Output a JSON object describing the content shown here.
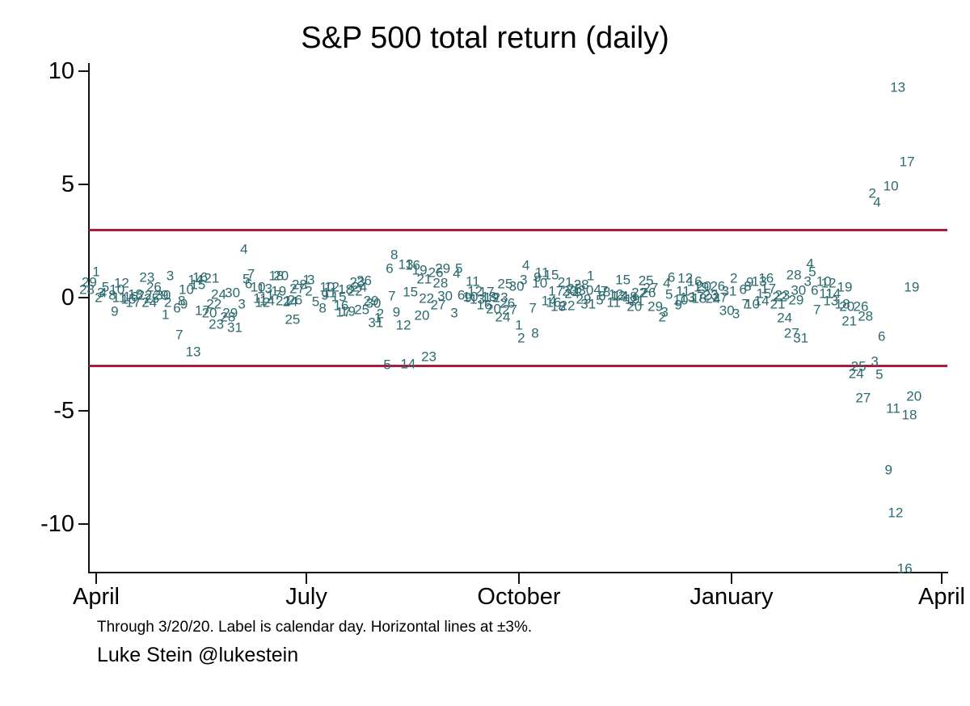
{
  "header": {
    "title": "S&P 500 total return (daily)"
  },
  "notes": {
    "footnote": "Through 3/20/20. Label is calendar day. Horizontal lines at ±3%.",
    "credit": "Luke Stein @lukestein"
  },
  "colors": {
    "point_label": "#2b6a6f",
    "ref_line": "#a81e3a",
    "axis": "#111111",
    "background": "#ffffff"
  },
  "chart_data": {
    "type": "scatter",
    "title": "S&P 500 total return (daily)",
    "marker": "calendar-day-number-label",
    "xlabel": "",
    "ylabel": "",
    "grid": false,
    "legend": "none",
    "x_axis": {
      "start_date": "2019-03-27",
      "end_date": "2020-04-01",
      "ticks": [
        {
          "label": "April",
          "date": "2019-04-01"
        },
        {
          "label": "July",
          "date": "2019-07-01"
        },
        {
          "label": "October",
          "date": "2019-10-01"
        },
        {
          "label": "January",
          "date": "2020-01-01"
        },
        {
          "label": "April",
          "date": "2020-04-01"
        }
      ]
    },
    "y_axis": {
      "ticks": [
        10,
        5,
        0,
        -5,
        -10
      ],
      "ylim": [
        -12.2,
        10.5
      ],
      "units": "percent"
    },
    "ref_lines": [
      3,
      -3
    ],
    "points": [
      [
        "2019-03-28",
        28,
        0.36
      ],
      [
        "2019-03-29",
        29,
        0.67
      ],
      [
        "2019-04-01",
        1,
        1.16
      ],
      [
        "2019-04-02",
        2,
        0.0
      ],
      [
        "2019-04-03",
        3,
        0.21
      ],
      [
        "2019-04-04",
        4,
        0.21
      ],
      [
        "2019-04-05",
        5,
        0.46
      ],
      [
        "2019-04-08",
        8,
        0.1
      ],
      [
        "2019-04-09",
        9,
        -0.61
      ],
      [
        "2019-04-10",
        10,
        0.35
      ],
      [
        "2019-04-11",
        11,
        0.0
      ],
      [
        "2019-04-12",
        12,
        0.66
      ],
      [
        "2019-04-15",
        15,
        -0.06
      ],
      [
        "2019-04-16",
        16,
        0.05
      ],
      [
        "2019-04-17",
        17,
        -0.23
      ],
      [
        "2019-04-18",
        18,
        0.16
      ],
      [
        "2019-04-22",
        22,
        0.1
      ],
      [
        "2019-04-23",
        23,
        0.88
      ],
      [
        "2019-04-24",
        24,
        -0.22
      ],
      [
        "2019-04-25",
        25,
        -0.04
      ],
      [
        "2019-04-26",
        26,
        0.47
      ],
      [
        "2019-04-29",
        29,
        0.11
      ],
      [
        "2019-04-30",
        30,
        0.1
      ],
      [
        "2019-05-01",
        1,
        -0.75
      ],
      [
        "2019-05-02",
        2,
        -0.21
      ],
      [
        "2019-05-03",
        3,
        0.96
      ],
      [
        "2019-05-06",
        6,
        -0.45
      ],
      [
        "2019-05-07",
        7,
        -1.65
      ],
      [
        "2019-05-08",
        8,
        -0.16
      ],
      [
        "2019-05-09",
        9,
        -0.3
      ],
      [
        "2019-05-10",
        10,
        0.37
      ],
      [
        "2019-05-13",
        13,
        -2.41
      ],
      [
        "2019-05-14",
        14,
        0.8
      ],
      [
        "2019-05-15",
        15,
        0.58
      ],
      [
        "2019-05-16",
        16,
        0.89
      ],
      [
        "2019-05-17",
        17,
        -0.58
      ],
      [
        "2019-05-20",
        20,
        -0.67
      ],
      [
        "2019-05-21",
        21,
        0.85
      ],
      [
        "2019-05-22",
        22,
        -0.28
      ],
      [
        "2019-05-23",
        23,
        -1.19
      ],
      [
        "2019-05-24",
        24,
        0.14
      ],
      [
        "2019-05-28",
        28,
        -0.84
      ],
      [
        "2019-05-29",
        29,
        -0.69
      ],
      [
        "2019-05-30",
        30,
        0.21
      ],
      [
        "2019-05-31",
        31,
        -1.32
      ],
      [
        "2019-06-03",
        3,
        -0.28
      ],
      [
        "2019-06-04",
        4,
        2.14
      ],
      [
        "2019-06-05",
        5,
        0.82
      ],
      [
        "2019-06-06",
        6,
        0.61
      ],
      [
        "2019-06-07",
        7,
        1.05
      ],
      [
        "2019-06-10",
        10,
        0.47
      ],
      [
        "2019-06-11",
        11,
        -0.03
      ],
      [
        "2019-06-12",
        12,
        -0.2
      ],
      [
        "2019-06-13",
        13,
        0.41
      ],
      [
        "2019-06-14",
        14,
        -0.16
      ],
      [
        "2019-06-17",
        17,
        0.09
      ],
      [
        "2019-06-18",
        18,
        0.97
      ],
      [
        "2019-06-19",
        19,
        0.3
      ],
      [
        "2019-06-20",
        20,
        0.95
      ],
      [
        "2019-06-21",
        21,
        -0.13
      ],
      [
        "2019-06-24",
        24,
        -0.17
      ],
      [
        "2019-06-25",
        25,
        -0.95
      ],
      [
        "2019-06-26",
        26,
        -0.12
      ],
      [
        "2019-06-27",
        27,
        0.38
      ],
      [
        "2019-06-28",
        28,
        0.58
      ],
      [
        "2019-07-01",
        1,
        0.77
      ],
      [
        "2019-07-02",
        2,
        0.29
      ],
      [
        "2019-07-03",
        3,
        0.77
      ],
      [
        "2019-07-05",
        5,
        -0.18
      ],
      [
        "2019-07-08",
        8,
        -0.48
      ],
      [
        "2019-07-09",
        9,
        0.12
      ],
      [
        "2019-07-10",
        10,
        0.45
      ],
      [
        "2019-07-11",
        11,
        0.23
      ],
      [
        "2019-07-12",
        12,
        0.46
      ],
      [
        "2019-07-15",
        15,
        0.02
      ],
      [
        "2019-07-16",
        16,
        -0.34
      ],
      [
        "2019-07-17",
        17,
        -0.65
      ],
      [
        "2019-07-18",
        18,
        0.36
      ],
      [
        "2019-07-19",
        19,
        -0.62
      ],
      [
        "2019-07-22",
        22,
        0.28
      ],
      [
        "2019-07-23",
        23,
        0.68
      ],
      [
        "2019-07-24",
        24,
        0.47
      ],
      [
        "2019-07-25",
        25,
        -0.53
      ],
      [
        "2019-07-26",
        26,
        0.74
      ],
      [
        "2019-07-29",
        29,
        -0.16
      ],
      [
        "2019-07-30",
        30,
        -0.26
      ],
      [
        "2019-07-31",
        31,
        -1.09
      ],
      [
        "2019-08-01",
        1,
        -0.9
      ],
      [
        "2019-08-02",
        2,
        -0.73
      ],
      [
        "2019-08-05",
        5,
        -2.98
      ],
      [
        "2019-08-06",
        6,
        1.3
      ],
      [
        "2019-08-07",
        7,
        0.08
      ],
      [
        "2019-08-08",
        8,
        1.88
      ],
      [
        "2019-08-09",
        9,
        -0.66
      ],
      [
        "2019-08-12",
        12,
        -1.22
      ],
      [
        "2019-08-13",
        13,
        1.48
      ],
      [
        "2019-08-14",
        14,
        -2.93
      ],
      [
        "2019-08-15",
        15,
        0.25
      ],
      [
        "2019-08-16",
        16,
        1.44
      ],
      [
        "2019-08-19",
        19,
        1.21
      ],
      [
        "2019-08-20",
        20,
        -0.79
      ],
      [
        "2019-08-21",
        21,
        0.82
      ],
      [
        "2019-08-22",
        22,
        -0.05
      ],
      [
        "2019-08-23",
        23,
        -2.59
      ],
      [
        "2019-08-26",
        26,
        1.1
      ],
      [
        "2019-08-27",
        27,
        -0.32
      ],
      [
        "2019-08-28",
        28,
        0.65
      ],
      [
        "2019-08-29",
        29,
        1.27
      ],
      [
        "2019-08-30",
        30,
        0.06
      ],
      [
        "2019-09-03",
        3,
        -0.69
      ],
      [
        "2019-09-04",
        4,
        1.08
      ],
      [
        "2019-09-05",
        5,
        1.3
      ],
      [
        "2019-09-06",
        6,
        0.09
      ],
      [
        "2019-09-09",
        9,
        0.0
      ],
      [
        "2019-09-10",
        10,
        0.03
      ],
      [
        "2019-09-11",
        11,
        0.72
      ],
      [
        "2019-09-12",
        12,
        0.29
      ],
      [
        "2019-09-13",
        13,
        -0.07
      ],
      [
        "2019-09-16",
        16,
        -0.31
      ],
      [
        "2019-09-17",
        17,
        0.26
      ],
      [
        "2019-09-18",
        18,
        0.03
      ],
      [
        "2019-09-19",
        19,
        0.0
      ],
      [
        "2019-09-20",
        20,
        -0.49
      ],
      [
        "2019-09-23",
        23,
        -0.01
      ],
      [
        "2019-09-24",
        24,
        -0.84
      ],
      [
        "2019-09-25",
        25,
        0.62
      ],
      [
        "2019-09-26",
        26,
        -0.24
      ],
      [
        "2019-09-27",
        27,
        -0.53
      ],
      [
        "2019-09-30",
        30,
        0.5
      ],
      [
        "2019-10-01",
        1,
        -1.23
      ],
      [
        "2019-10-02",
        2,
        -1.79
      ],
      [
        "2019-10-03",
        3,
        0.8
      ],
      [
        "2019-10-04",
        4,
        1.42
      ],
      [
        "2019-10-07",
        7,
        -0.45
      ],
      [
        "2019-10-08",
        8,
        -1.56
      ],
      [
        "2019-10-09",
        9,
        0.91
      ],
      [
        "2019-10-10",
        10,
        0.64
      ],
      [
        "2019-10-11",
        11,
        1.09
      ],
      [
        "2019-10-14",
        14,
        -0.14
      ],
      [
        "2019-10-15",
        15,
        1.0
      ],
      [
        "2019-10-16",
        16,
        -0.2
      ],
      [
        "2019-10-17",
        17,
        0.28
      ],
      [
        "2019-10-18",
        18,
        -0.39
      ],
      [
        "2019-10-21",
        21,
        0.69
      ],
      [
        "2019-10-22",
        22,
        -0.36
      ],
      [
        "2019-10-23",
        23,
        0.28
      ],
      [
        "2019-10-24",
        24,
        0.19
      ],
      [
        "2019-10-25",
        25,
        0.41
      ],
      [
        "2019-10-28",
        28,
        0.56
      ],
      [
        "2019-10-29",
        29,
        -0.08
      ],
      [
        "2019-10-30",
        30,
        0.33
      ],
      [
        "2019-10-31",
        31,
        -0.3
      ],
      [
        "2019-11-01",
        1,
        0.97
      ],
      [
        "2019-11-04",
        4,
        0.37
      ],
      [
        "2019-11-05",
        5,
        -0.12
      ],
      [
        "2019-11-06",
        6,
        0.07
      ],
      [
        "2019-11-07",
        7,
        0.27
      ],
      [
        "2019-11-08",
        8,
        0.26
      ],
      [
        "2019-11-11",
        11,
        -0.2
      ],
      [
        "2019-11-12",
        12,
        0.16
      ],
      [
        "2019-11-13",
        13,
        0.07
      ],
      [
        "2019-11-14",
        14,
        0.08
      ],
      [
        "2019-11-15",
        15,
        0.77
      ],
      [
        "2019-11-18",
        18,
        0.05
      ],
      [
        "2019-11-19",
        19,
        -0.06
      ],
      [
        "2019-11-20",
        20,
        -0.38
      ],
      [
        "2019-11-21",
        21,
        -0.16
      ],
      [
        "2019-11-22",
        22,
        0.22
      ],
      [
        "2019-11-25",
        25,
        0.75
      ],
      [
        "2019-11-26",
        26,
        0.22
      ],
      [
        "2019-11-27",
        27,
        0.42
      ],
      [
        "2019-11-29",
        29,
        -0.4
      ],
      [
        "2019-12-02",
        2,
        -0.86
      ],
      [
        "2019-12-03",
        3,
        -0.66
      ],
      [
        "2019-12-04",
        4,
        0.63
      ],
      [
        "2019-12-05",
        5,
        0.15
      ],
      [
        "2019-12-06",
        6,
        0.91
      ],
      [
        "2019-12-09",
        9,
        -0.32
      ],
      [
        "2019-12-10",
        10,
        -0.11
      ],
      [
        "2019-12-11",
        11,
        0.29
      ],
      [
        "2019-12-12",
        12,
        0.86
      ],
      [
        "2019-12-13",
        13,
        0.01
      ],
      [
        "2019-12-16",
        16,
        0.71
      ],
      [
        "2019-12-17",
        17,
        0.03
      ],
      [
        "2019-12-18",
        18,
        -0.04
      ],
      [
        "2019-12-19",
        19,
        0.45
      ],
      [
        "2019-12-20",
        20,
        0.49
      ],
      [
        "2019-12-23",
        23,
        0.09
      ],
      [
        "2019-12-24",
        24,
        -0.02
      ],
      [
        "2019-12-26",
        26,
        0.51
      ],
      [
        "2019-12-27",
        27,
        0.0
      ],
      [
        "2019-12-30",
        30,
        -0.58
      ],
      [
        "2019-12-31",
        31,
        0.29
      ],
      [
        "2020-01-02",
        2,
        0.84
      ],
      [
        "2020-01-03",
        3,
        -0.71
      ],
      [
        "2020-01-06",
        6,
        0.35
      ],
      [
        "2020-01-07",
        7,
        -0.28
      ],
      [
        "2020-01-08",
        8,
        0.49
      ],
      [
        "2020-01-09",
        9,
        0.67
      ],
      [
        "2020-01-10",
        10,
        -0.29
      ],
      [
        "2020-01-13",
        13,
        0.7
      ],
      [
        "2020-01-14",
        14,
        -0.15
      ],
      [
        "2020-01-15",
        15,
        0.19
      ],
      [
        "2020-01-16",
        16,
        0.84
      ],
      [
        "2020-01-17",
        17,
        0.39
      ],
      [
        "2020-01-21",
        21,
        -0.27
      ],
      [
        "2020-01-22",
        22,
        0.03
      ],
      [
        "2020-01-23",
        23,
        0.11
      ],
      [
        "2020-01-24",
        24,
        -0.9
      ],
      [
        "2020-01-27",
        27,
        -1.57
      ],
      [
        "2020-01-28",
        28,
        1.01
      ],
      [
        "2020-01-29",
        29,
        -0.09
      ],
      [
        "2020-01-30",
        30,
        0.31
      ],
      [
        "2020-01-31",
        31,
        -1.77
      ],
      [
        "2020-02-03",
        3,
        0.73
      ],
      [
        "2020-02-04",
        4,
        1.5
      ],
      [
        "2020-02-05",
        5,
        1.13
      ],
      [
        "2020-02-06",
        6,
        0.33
      ],
      [
        "2020-02-07",
        7,
        -0.54
      ],
      [
        "2020-02-10",
        10,
        0.73
      ],
      [
        "2020-02-11",
        11,
        0.17
      ],
      [
        "2020-02-12",
        12,
        0.65
      ],
      [
        "2020-02-13",
        13,
        -0.16
      ],
      [
        "2020-02-14",
        14,
        0.18
      ],
      [
        "2020-02-18",
        18,
        -0.29
      ],
      [
        "2020-02-19",
        19,
        0.47
      ],
      [
        "2020-02-20",
        20,
        -0.38
      ],
      [
        "2020-02-21",
        21,
        -1.05
      ],
      [
        "2020-02-24",
        24,
        -3.35
      ],
      [
        "2020-02-25",
        25,
        -3.03
      ],
      [
        "2020-02-26",
        26,
        -0.38
      ],
      [
        "2020-02-27",
        27,
        -4.42
      ],
      [
        "2020-02-28",
        28,
        -0.82
      ],
      [
        "2020-03-02",
        2,
        4.6
      ],
      [
        "2020-03-03",
        3,
        -2.81
      ],
      [
        "2020-03-04",
        4,
        4.22
      ],
      [
        "2020-03-05",
        5,
        -3.39
      ],
      [
        "2020-03-06",
        6,
        -1.71
      ],
      [
        "2020-03-09",
        9,
        -7.6
      ],
      [
        "2020-03-10",
        10,
        4.94
      ],
      [
        "2020-03-11",
        11,
        -4.89
      ],
      [
        "2020-03-12",
        12,
        -9.51
      ],
      [
        "2020-03-13",
        13,
        9.29
      ],
      [
        "2020-03-16",
        16,
        -11.98
      ],
      [
        "2020-03-17",
        17,
        6.0
      ],
      [
        "2020-03-18",
        18,
        -5.18
      ],
      [
        "2020-03-19",
        19,
        0.47
      ],
      [
        "2020-03-20",
        20,
        -4.34
      ]
    ]
  }
}
